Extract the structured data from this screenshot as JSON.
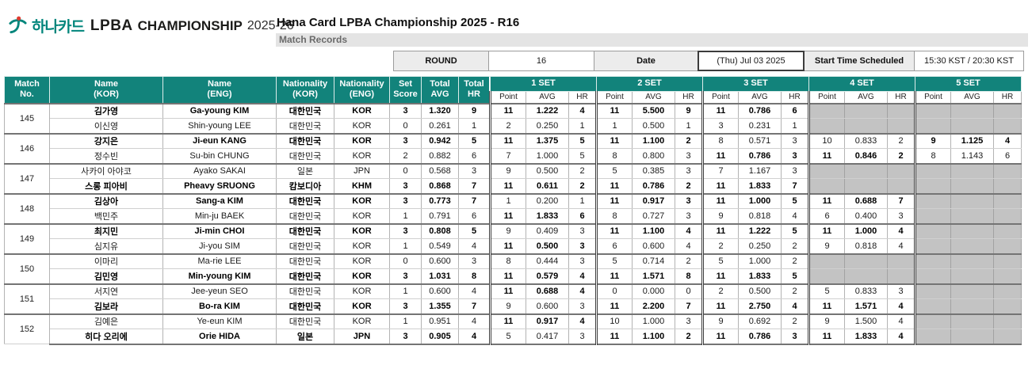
{
  "colors": {
    "accent_teal": "#12837b",
    "brand_green": "#00857b",
    "brand_red": "#e03c31",
    "empty_cell": "#c3c3c3"
  },
  "brand": {
    "kor": "하나카드",
    "lpba": "LPBA",
    "championship": "CHAMPIONSHIP",
    "season": "2025-26"
  },
  "header": {
    "title": "Hana Card LPBA Championship 2025 - R16",
    "subtitle": "Match Records"
  },
  "info_bar": {
    "round_label": "ROUND",
    "round_value": "16",
    "date_label": "Date",
    "date_value": "(Thu) Jul 03 2025",
    "start_time_label": "Start Time Scheduled",
    "start_time_value": "15:30 KST / 20:30 KST"
  },
  "table": {
    "main_headers": [
      "Match\nNo.",
      "Name\n(KOR)",
      "Name\n(ENG)",
      "Nationality\n(KOR)",
      "Nationality\n(ENG)",
      "Set\nScore",
      "Total\nAVG",
      "Total\nHR"
    ],
    "main_header_keys": [
      "match-no",
      "name-kor",
      "name-eng",
      "nationality-kor",
      "nationality-eng",
      "set-score",
      "total-avg",
      "total-hr"
    ],
    "set_headers": [
      "1 SET",
      "2 SET",
      "3 SET",
      "4 SET",
      "5 SET"
    ],
    "set_sub_headers": [
      "Point",
      "AVG",
      "HR"
    ]
  },
  "matches": [
    {
      "no": "145",
      "players": [
        {
          "name_kor": "김가영",
          "name_eng": "Ga-young KIM",
          "nat_kor": "대한민국",
          "nat_eng": "KOR",
          "set_score": "3",
          "total_avg": "1.320",
          "total_hr": "9",
          "winner": true,
          "sets": [
            {
              "point": "11",
              "avg": "1.222",
              "hr": "4",
              "win": true
            },
            {
              "point": "11",
              "avg": "5.500",
              "hr": "9",
              "win": true
            },
            {
              "point": "11",
              "avg": "0.786",
              "hr": "6",
              "win": true
            },
            null,
            null
          ]
        },
        {
          "name_kor": "이신영",
          "name_eng": "Shin-young LEE",
          "nat_kor": "대한민국",
          "nat_eng": "KOR",
          "set_score": "0",
          "total_avg": "0.261",
          "total_hr": "1",
          "winner": false,
          "sets": [
            {
              "point": "2",
              "avg": "0.250",
              "hr": "1",
              "win": false
            },
            {
              "point": "1",
              "avg": "0.500",
              "hr": "1",
              "win": false
            },
            {
              "point": "3",
              "avg": "0.231",
              "hr": "1",
              "win": false
            },
            null,
            null
          ]
        }
      ]
    },
    {
      "no": "146",
      "players": [
        {
          "name_kor": "강지은",
          "name_eng": "Ji-eun KANG",
          "nat_kor": "대한민국",
          "nat_eng": "KOR",
          "set_score": "3",
          "total_avg": "0.942",
          "total_hr": "5",
          "winner": true,
          "sets": [
            {
              "point": "11",
              "avg": "1.375",
              "hr": "5",
              "win": true
            },
            {
              "point": "11",
              "avg": "1.100",
              "hr": "2",
              "win": true
            },
            {
              "point": "8",
              "avg": "0.571",
              "hr": "3",
              "win": false
            },
            {
              "point": "10",
              "avg": "0.833",
              "hr": "2",
              "win": false
            },
            {
              "point": "9",
              "avg": "1.125",
              "hr": "4",
              "win": true
            }
          ]
        },
        {
          "name_kor": "정수빈",
          "name_eng": "Su-bin CHUNG",
          "nat_kor": "대한민국",
          "nat_eng": "KOR",
          "set_score": "2",
          "total_avg": "0.882",
          "total_hr": "6",
          "winner": false,
          "sets": [
            {
              "point": "7",
              "avg": "1.000",
              "hr": "5",
              "win": false
            },
            {
              "point": "8",
              "avg": "0.800",
              "hr": "3",
              "win": false
            },
            {
              "point": "11",
              "avg": "0.786",
              "hr": "3",
              "win": true
            },
            {
              "point": "11",
              "avg": "0.846",
              "hr": "2",
              "win": true
            },
            {
              "point": "8",
              "avg": "1.143",
              "hr": "6",
              "win": false
            }
          ]
        }
      ]
    },
    {
      "no": "147",
      "players": [
        {
          "name_kor": "사카이 아야코",
          "name_eng": "Ayako SAKAI",
          "nat_kor": "일본",
          "nat_eng": "JPN",
          "set_score": "0",
          "total_avg": "0.568",
          "total_hr": "3",
          "winner": false,
          "sets": [
            {
              "point": "9",
              "avg": "0.500",
              "hr": "2",
              "win": false
            },
            {
              "point": "5",
              "avg": "0.385",
              "hr": "3",
              "win": false
            },
            {
              "point": "7",
              "avg": "1.167",
              "hr": "3",
              "win": false
            },
            null,
            null
          ]
        },
        {
          "name_kor": "스롱 피아비",
          "name_eng": "Pheavy SRUONG",
          "nat_kor": "캄보디아",
          "nat_eng": "KHM",
          "set_score": "3",
          "total_avg": "0.868",
          "total_hr": "7",
          "winner": true,
          "sets": [
            {
              "point": "11",
              "avg": "0.611",
              "hr": "2",
              "win": true
            },
            {
              "point": "11",
              "avg": "0.786",
              "hr": "2",
              "win": true
            },
            {
              "point": "11",
              "avg": "1.833",
              "hr": "7",
              "win": true
            },
            null,
            null
          ]
        }
      ]
    },
    {
      "no": "148",
      "players": [
        {
          "name_kor": "김상아",
          "name_eng": "Sang-a KIM",
          "nat_kor": "대한민국",
          "nat_eng": "KOR",
          "set_score": "3",
          "total_avg": "0.773",
          "total_hr": "7",
          "winner": true,
          "sets": [
            {
              "point": "1",
              "avg": "0.200",
              "hr": "1",
              "win": false
            },
            {
              "point": "11",
              "avg": "0.917",
              "hr": "3",
              "win": true
            },
            {
              "point": "11",
              "avg": "1.000",
              "hr": "5",
              "win": true
            },
            {
              "point": "11",
              "avg": "0.688",
              "hr": "7",
              "win": true
            },
            null
          ]
        },
        {
          "name_kor": "백민주",
          "name_eng": "Min-ju BAEK",
          "nat_kor": "대한민국",
          "nat_eng": "KOR",
          "set_score": "1",
          "total_avg": "0.791",
          "total_hr": "6",
          "winner": false,
          "sets": [
            {
              "point": "11",
              "avg": "1.833",
              "hr": "6",
              "win": true
            },
            {
              "point": "8",
              "avg": "0.727",
              "hr": "3",
              "win": false
            },
            {
              "point": "9",
              "avg": "0.818",
              "hr": "4",
              "win": false
            },
            {
              "point": "6",
              "avg": "0.400",
              "hr": "3",
              "win": false
            },
            null
          ]
        }
      ]
    },
    {
      "no": "149",
      "players": [
        {
          "name_kor": "최지민",
          "name_eng": "Ji-min CHOI",
          "nat_kor": "대한민국",
          "nat_eng": "KOR",
          "set_score": "3",
          "total_avg": "0.808",
          "total_hr": "5",
          "winner": true,
          "sets": [
            {
              "point": "9",
              "avg": "0.409",
              "hr": "3",
              "win": false
            },
            {
              "point": "11",
              "avg": "1.100",
              "hr": "4",
              "win": true
            },
            {
              "point": "11",
              "avg": "1.222",
              "hr": "5",
              "win": true
            },
            {
              "point": "11",
              "avg": "1.000",
              "hr": "4",
              "win": true
            },
            null
          ]
        },
        {
          "name_kor": "심지유",
          "name_eng": "Ji-you SIM",
          "nat_kor": "대한민국",
          "nat_eng": "KOR",
          "set_score": "1",
          "total_avg": "0.549",
          "total_hr": "4",
          "winner": false,
          "sets": [
            {
              "point": "11",
              "avg": "0.500",
              "hr": "3",
              "win": true
            },
            {
              "point": "6",
              "avg": "0.600",
              "hr": "4",
              "win": false
            },
            {
              "point": "2",
              "avg": "0.250",
              "hr": "2",
              "win": false
            },
            {
              "point": "9",
              "avg": "0.818",
              "hr": "4",
              "win": false
            },
            null
          ]
        }
      ]
    },
    {
      "no": "150",
      "players": [
        {
          "name_kor": "이마리",
          "name_eng": "Ma-rie LEE",
          "nat_kor": "대한민국",
          "nat_eng": "KOR",
          "set_score": "0",
          "total_avg": "0.600",
          "total_hr": "3",
          "winner": false,
          "sets": [
            {
              "point": "8",
              "avg": "0.444",
              "hr": "3",
              "win": false
            },
            {
              "point": "5",
              "avg": "0.714",
              "hr": "2",
              "win": false
            },
            {
              "point": "5",
              "avg": "1.000",
              "hr": "2",
              "win": false
            },
            null,
            null
          ]
        },
        {
          "name_kor": "김민영",
          "name_eng": "Min-young KIM",
          "nat_kor": "대한민국",
          "nat_eng": "KOR",
          "set_score": "3",
          "total_avg": "1.031",
          "total_hr": "8",
          "winner": true,
          "sets": [
            {
              "point": "11",
              "avg": "0.579",
              "hr": "4",
              "win": true
            },
            {
              "point": "11",
              "avg": "1.571",
              "hr": "8",
              "win": true
            },
            {
              "point": "11",
              "avg": "1.833",
              "hr": "5",
              "win": true
            },
            null,
            null
          ]
        }
      ]
    },
    {
      "no": "151",
      "players": [
        {
          "name_kor": "서지연",
          "name_eng": "Jee-yeun SEO",
          "nat_kor": "대한민국",
          "nat_eng": "KOR",
          "set_score": "1",
          "total_avg": "0.600",
          "total_hr": "4",
          "winner": false,
          "sets": [
            {
              "point": "11",
              "avg": "0.688",
              "hr": "4",
              "win": true
            },
            {
              "point": "0",
              "avg": "0.000",
              "hr": "0",
              "win": false
            },
            {
              "point": "2",
              "avg": "0.500",
              "hr": "2",
              "win": false
            },
            {
              "point": "5",
              "avg": "0.833",
              "hr": "3",
              "win": false
            },
            null
          ]
        },
        {
          "name_kor": "김보라",
          "name_eng": "Bo-ra KIM",
          "nat_kor": "대한민국",
          "nat_eng": "KOR",
          "set_score": "3",
          "total_avg": "1.355",
          "total_hr": "7",
          "winner": true,
          "sets": [
            {
              "point": "9",
              "avg": "0.600",
              "hr": "3",
              "win": false
            },
            {
              "point": "11",
              "avg": "2.200",
              "hr": "7",
              "win": true
            },
            {
              "point": "11",
              "avg": "2.750",
              "hr": "4",
              "win": true
            },
            {
              "point": "11",
              "avg": "1.571",
              "hr": "4",
              "win": true
            },
            null
          ]
        }
      ]
    },
    {
      "no": "152",
      "players": [
        {
          "name_kor": "김예은",
          "name_eng": "Ye-eun KIM",
          "nat_kor": "대한민국",
          "nat_eng": "KOR",
          "set_score": "1",
          "total_avg": "0.951",
          "total_hr": "4",
          "winner": false,
          "sets": [
            {
              "point": "11",
              "avg": "0.917",
              "hr": "4",
              "win": true
            },
            {
              "point": "10",
              "avg": "1.000",
              "hr": "3",
              "win": false
            },
            {
              "point": "9",
              "avg": "0.692",
              "hr": "2",
              "win": false
            },
            {
              "point": "9",
              "avg": "1.500",
              "hr": "4",
              "win": false
            },
            null
          ]
        },
        {
          "name_kor": "히다 오리에",
          "name_eng": "Orie HIDA",
          "nat_kor": "일본",
          "nat_eng": "JPN",
          "set_score": "3",
          "total_avg": "0.905",
          "total_hr": "4",
          "winner": true,
          "sets": [
            {
              "point": "5",
              "avg": "0.417",
              "hr": "3",
              "win": false
            },
            {
              "point": "11",
              "avg": "1.100",
              "hr": "2",
              "win": true
            },
            {
              "point": "11",
              "avg": "0.786",
              "hr": "3",
              "win": true
            },
            {
              "point": "11",
              "avg": "1.833",
              "hr": "4",
              "win": true
            },
            null
          ]
        }
      ]
    }
  ]
}
